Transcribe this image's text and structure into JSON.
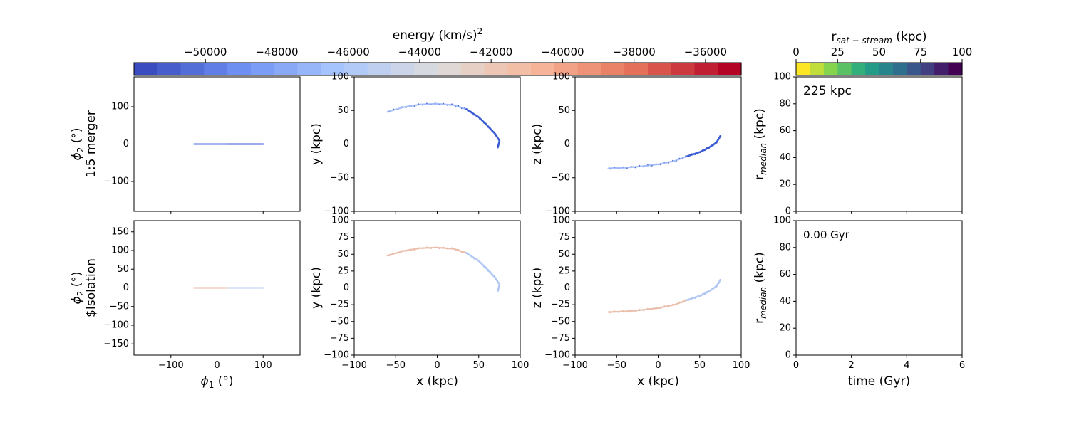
{
  "energy_colorbar": {
    "label": "energy (km/s)",
    "label_exponent": "2",
    "range": [
      -52000,
      -35000
    ],
    "ticks": [
      -50000,
      -48000,
      -46000,
      -44000,
      -42000,
      -40000,
      -38000,
      -36000
    ],
    "tick_labels": [
      "−50000",
      "−48000",
      "−46000",
      "−44000",
      "−42000",
      "−40000",
      "−38000",
      "−36000"
    ],
    "colormap": "coolwarm",
    "colors": [
      "#3b4cc0",
      "#6f92f3",
      "#aac7fd",
      "#dddcdc",
      "#f7b89c",
      "#e7745b",
      "#b40426"
    ]
  },
  "rsat_colorbar": {
    "label_prefix": "r",
    "label_sub": "sat − stream",
    "label_suffix": " (kpc)",
    "range": [
      0,
      100
    ],
    "tick_labels": [
      "0",
      "25",
      "50",
      "75",
      "100"
    ],
    "colormap": "viridis_r",
    "colors": [
      "#fde725",
      "#7ad151",
      "#22a884",
      "#2a788e",
      "#414487",
      "#440154"
    ]
  },
  "rows": [
    {
      "row_label": "1:5 merger",
      "phi2_label": "ϕ",
      "phi2_sub": "2",
      "phi2_unit": " (°)",
      "median_annotation": "225 kpc",
      "stream_color": "#4f6fdc",
      "stream_color_light": "#9db8f8"
    },
    {
      "row_label": "$Isolation",
      "phi2_label": "ϕ",
      "phi2_sub": "2",
      "phi2_unit": " (°)",
      "median_annotation": "0.00 Gyr",
      "stream_color": "#e8b8a4",
      "stream_color_light": "#b9cdf4"
    }
  ],
  "chart_data": [
    {
      "type": "scatter",
      "panel": "sky-merger",
      "xlabel": "",
      "ylabel": "ϕ2 (°)",
      "xlim": [
        -180,
        180
      ],
      "ylim": [
        -180,
        180
      ],
      "yticks": [
        "100",
        "0",
        "−100"
      ],
      "stream": {
        "x_range": [
          -50,
          100
        ],
        "y": 0
      }
    },
    {
      "type": "scatter",
      "panel": "xy-merger",
      "ylabel": "y (kpc)",
      "xlim": [
        -100,
        100
      ],
      "ylim": [
        -100,
        100
      ],
      "yticks": [
        "100",
        "50",
        "0",
        "−50",
        "−100"
      ],
      "points": [
        [
          -60,
          48
        ],
        [
          -40,
          55
        ],
        [
          -20,
          59
        ],
        [
          0,
          60
        ],
        [
          20,
          58
        ],
        [
          35,
          52
        ],
        [
          50,
          40
        ],
        [
          60,
          28
        ],
        [
          70,
          15
        ],
        [
          75,
          5
        ],
        [
          73,
          -5
        ]
      ]
    },
    {
      "type": "scatter",
      "panel": "xz-merger",
      "ylabel": "z (kpc)",
      "xlim": [
        -100,
        100
      ],
      "ylim": [
        -100,
        100
      ],
      "yticks": [
        "100",
        "50",
        "0",
        "−50",
        "−100"
      ],
      "points": [
        [
          -60,
          -36
        ],
        [
          -40,
          -35
        ],
        [
          -20,
          -33
        ],
        [
          0,
          -30
        ],
        [
          20,
          -25
        ],
        [
          35,
          -18
        ],
        [
          50,
          -12
        ],
        [
          60,
          -6
        ],
        [
          70,
          2
        ],
        [
          75,
          12
        ]
      ]
    },
    {
      "type": "line",
      "panel": "median-merger",
      "ylabel_prefix": "r",
      "ylabel_sub": "median",
      "ylabel_suffix": " (kpc)",
      "xlim": [
        0,
        6
      ],
      "ylim": [
        0,
        100
      ],
      "yticks": [
        "100",
        "80",
        "60",
        "40",
        "20",
        "0"
      ],
      "series": []
    },
    {
      "type": "scatter",
      "panel": "sky-isolation",
      "xlabel": "ϕ1 (°)",
      "ylabel": "ϕ2 (°)",
      "xlim": [
        -180,
        180
      ],
      "ylim": [
        -180,
        180
      ],
      "xticks": [
        "−100",
        "0",
        "100"
      ],
      "yticks": [
        "150",
        "100",
        "50",
        "0",
        "−50",
        "−100",
        "−150"
      ],
      "stream": {
        "x_range": [
          -50,
          100
        ],
        "y": 0
      }
    },
    {
      "type": "scatter",
      "panel": "xy-isolation",
      "xlabel": "x (kpc)",
      "ylabel": "y (kpc)",
      "xlim": [
        -100,
        100
      ],
      "ylim": [
        -100,
        100
      ],
      "xticks": [
        "−100",
        "−50",
        "0",
        "50",
        "100"
      ],
      "yticks": [
        "100",
        "75",
        "50",
        "25",
        "0",
        "−25",
        "−50",
        "−75",
        "−100"
      ],
      "points": [
        [
          -60,
          48
        ],
        [
          -40,
          55
        ],
        [
          -20,
          59
        ],
        [
          0,
          60
        ],
        [
          20,
          58
        ],
        [
          35,
          52
        ],
        [
          50,
          40
        ],
        [
          60,
          28
        ],
        [
          70,
          15
        ],
        [
          75,
          5
        ],
        [
          73,
          -5
        ]
      ]
    },
    {
      "type": "scatter",
      "panel": "xz-isolation",
      "xlabel": "x (kpc)",
      "ylabel": "z (kpc)",
      "xlim": [
        -100,
        100
      ],
      "ylim": [
        -100,
        100
      ],
      "xticks": [
        "−100",
        "−50",
        "0",
        "50",
        "100"
      ],
      "yticks": [
        "100",
        "75",
        "50",
        "25",
        "0",
        "−25",
        "−50",
        "−75",
        "−100"
      ],
      "points": [
        [
          -60,
          -36
        ],
        [
          -40,
          -35
        ],
        [
          -20,
          -33
        ],
        [
          0,
          -30
        ],
        [
          20,
          -25
        ],
        [
          35,
          -18
        ],
        [
          50,
          -12
        ],
        [
          60,
          -6
        ],
        [
          70,
          2
        ],
        [
          75,
          12
        ]
      ]
    },
    {
      "type": "line",
      "panel": "median-isolation",
      "xlabel": "time (Gyr)",
      "ylabel_prefix": "r",
      "ylabel_sub": "median",
      "ylabel_suffix": " (kpc)",
      "xlim": [
        0,
        6
      ],
      "ylim": [
        0,
        100
      ],
      "xticks": [
        "0",
        "2",
        "4",
        "6"
      ],
      "yticks": [
        "100",
        "80",
        "60",
        "40",
        "20",
        "0"
      ],
      "series": []
    }
  ]
}
